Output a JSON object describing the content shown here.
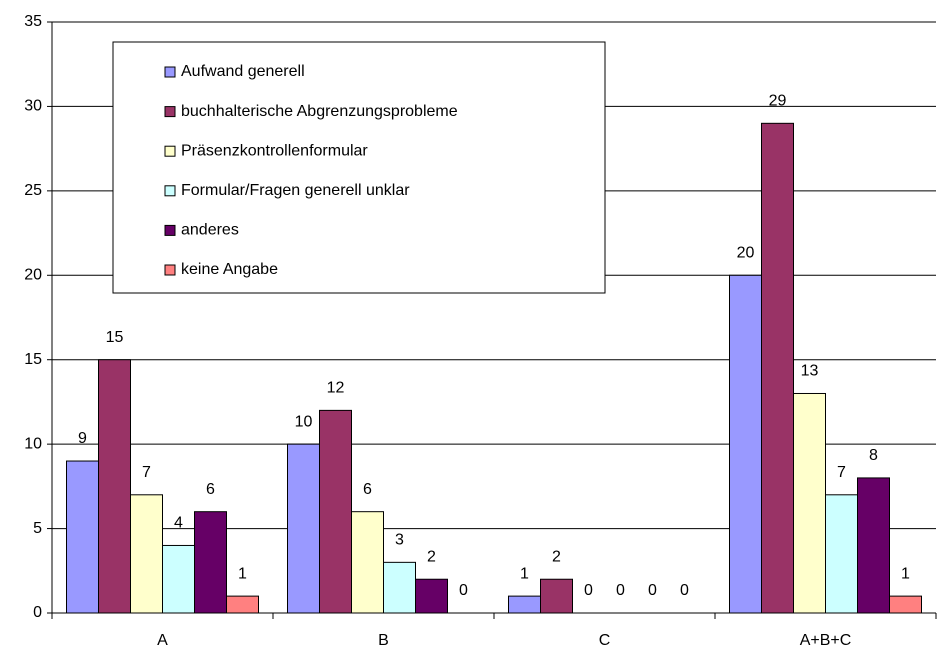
{
  "chart_data": {
    "type": "bar",
    "categories": [
      "A",
      "B",
      "C",
      "A+B+C"
    ],
    "series": [
      {
        "name": "Aufwand generell",
        "color": "#9999ff",
        "values": [
          9,
          10,
          1,
          20
        ]
      },
      {
        "name": "buchhalterische Abgrenzungsprobleme",
        "color": "#993366",
        "values": [
          15,
          12,
          2,
          29
        ]
      },
      {
        "name": "Präsenzkontrollenformular",
        "color": "#ffffcc",
        "values": [
          7,
          6,
          0,
          13
        ]
      },
      {
        "name": "Formular/Fragen generell unklar",
        "color": "#ccffff",
        "values": [
          4,
          3,
          0,
          7
        ]
      },
      {
        "name": "anderes",
        "color": "#660066",
        "values": [
          6,
          2,
          0,
          8
        ]
      },
      {
        "name": "keine Angabe",
        "color": "#ff8080",
        "values": [
          1,
          0,
          0,
          1
        ]
      }
    ],
    "ylim": [
      0,
      35
    ],
    "yticks": [
      0,
      5,
      10,
      15,
      20,
      25,
      30,
      35
    ],
    "grid": true,
    "legend": "top-left"
  }
}
